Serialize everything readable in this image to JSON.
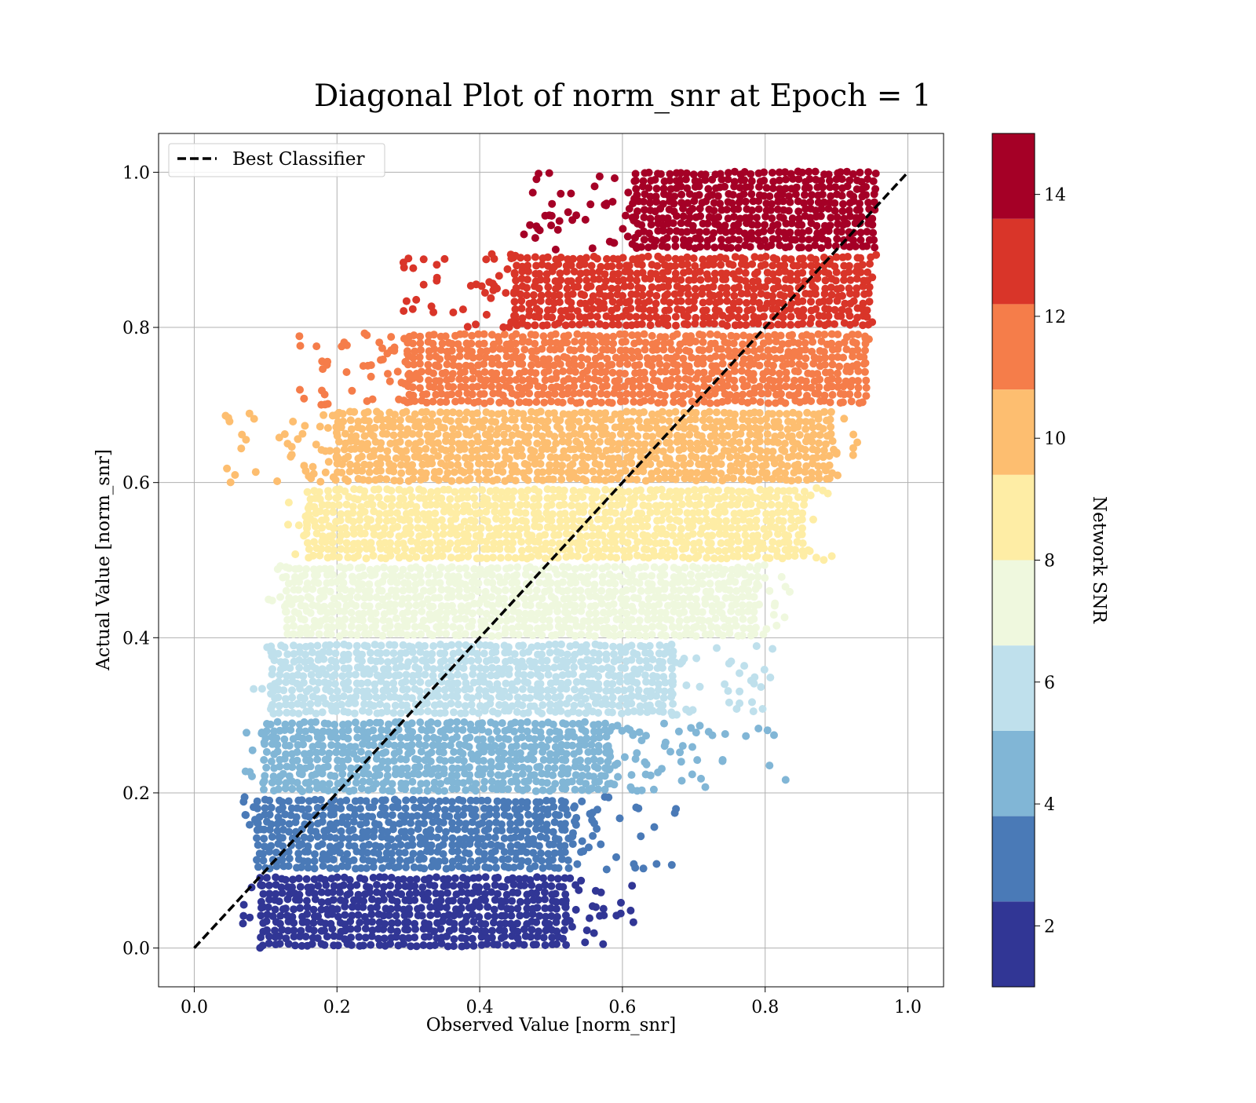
{
  "chart_data": {
    "type": "scatter",
    "title": "Diagonal Plot of norm_snr at Epoch = 1",
    "xlabel": "Observed Value [norm_snr]",
    "ylabel": "Actual Value [norm_snr]",
    "xlim": [
      -0.05,
      1.05
    ],
    "ylim": [
      -0.05,
      1.05
    ],
    "xticks": [
      0.0,
      0.2,
      0.4,
      0.6,
      0.8,
      1.0
    ],
    "yticks": [
      0.0,
      0.2,
      0.4,
      0.6,
      0.8,
      1.0
    ],
    "xtick_labels": [
      "0.0",
      "0.2",
      "0.4",
      "0.6",
      "0.8",
      "1.0"
    ],
    "ytick_labels": [
      "0.0",
      "0.2",
      "0.4",
      "0.6",
      "0.8",
      "1.0"
    ],
    "grid": true,
    "legend": {
      "position": "top-left",
      "entries": [
        "Best Classifier"
      ]
    },
    "reference_line": {
      "name": "Best Classifier",
      "style": "dashed",
      "color": "#000000",
      "x": [
        0.0,
        1.0
      ],
      "y": [
        0.0,
        1.0
      ]
    },
    "colorbar": {
      "label": "Network SNR",
      "range": [
        1,
        15
      ],
      "ticks": [
        2,
        4,
        6,
        8,
        10,
        12,
        14
      ],
      "tick_labels": [
        "2",
        "4",
        "6",
        "8",
        "10",
        "12",
        "14"
      ],
      "bins": [
        {
          "min": 1.0,
          "max": 2.4,
          "color": "#313695"
        },
        {
          "min": 2.4,
          "max": 3.8,
          "color": "#4a7ab7"
        },
        {
          "min": 3.8,
          "max": 5.2,
          "color": "#81b6d6"
        },
        {
          "min": 5.2,
          "max": 6.6,
          "color": "#bfe0ec"
        },
        {
          "min": 6.6,
          "max": 8.0,
          "color": "#eff8de"
        },
        {
          "min": 8.0,
          "max": 9.4,
          "color": "#feeda5"
        },
        {
          "min": 9.4,
          "max": 10.8,
          "color": "#fdbe70"
        },
        {
          "min": 10.8,
          "max": 12.2,
          "color": "#f57d4a"
        },
        {
          "min": 12.2,
          "max": 13.6,
          "color": "#d93529"
        },
        {
          "min": 13.6,
          "max": 15.0,
          "color": "#a50026"
        }
      ]
    },
    "bands": [
      {
        "y_range": [
          0.0,
          0.095
        ],
        "x_dense": [
          0.095,
          0.52
        ],
        "x_scatter_max": 0.63,
        "color": "#313695"
      },
      {
        "y_range": [
          0.1,
          0.195
        ],
        "x_dense": [
          0.09,
          0.53
        ],
        "x_scatter_max": 0.68,
        "color": "#4a7ab7"
      },
      {
        "y_range": [
          0.2,
          0.29
        ],
        "x_dense": [
          0.1,
          0.58
        ],
        "x_scatter_max": 0.83,
        "color": "#81b6d6"
      },
      {
        "y_range": [
          0.3,
          0.395
        ],
        "x_dense": [
          0.11,
          0.67
        ],
        "x_scatter_max": 0.82,
        "color": "#bfe0ec"
      },
      {
        "y_range": [
          0.4,
          0.495
        ],
        "x_dense": [
          0.13,
          0.79
        ],
        "x_scatter_max": 0.85,
        "color": "#eff8de"
      },
      {
        "y_range": [
          0.5,
          0.595
        ],
        "x_dense": [
          0.16,
          0.86
        ],
        "x_scatter_max": 0.9,
        "color": "#feeda5"
      },
      {
        "y_range": [
          0.6,
          0.695
        ],
        "x_dense": [
          0.2,
          0.9
        ],
        "x_scatter_max": 0.93,
        "color": "#fdbe70"
      },
      {
        "y_range": [
          0.7,
          0.795
        ],
        "x_dense": [
          0.3,
          0.94
        ],
        "x_scatter_max": 0.95,
        "color": "#f57d4a"
      },
      {
        "y_range": [
          0.8,
          0.895
        ],
        "x_dense": [
          0.45,
          0.95
        ],
        "x_scatter_max": 0.96,
        "color": "#d93529"
      },
      {
        "y_range": [
          0.9,
          1.0
        ],
        "x_dense": [
          0.62,
          0.96
        ],
        "x_scatter_max": 0.96,
        "color": "#a50026"
      }
    ]
  }
}
